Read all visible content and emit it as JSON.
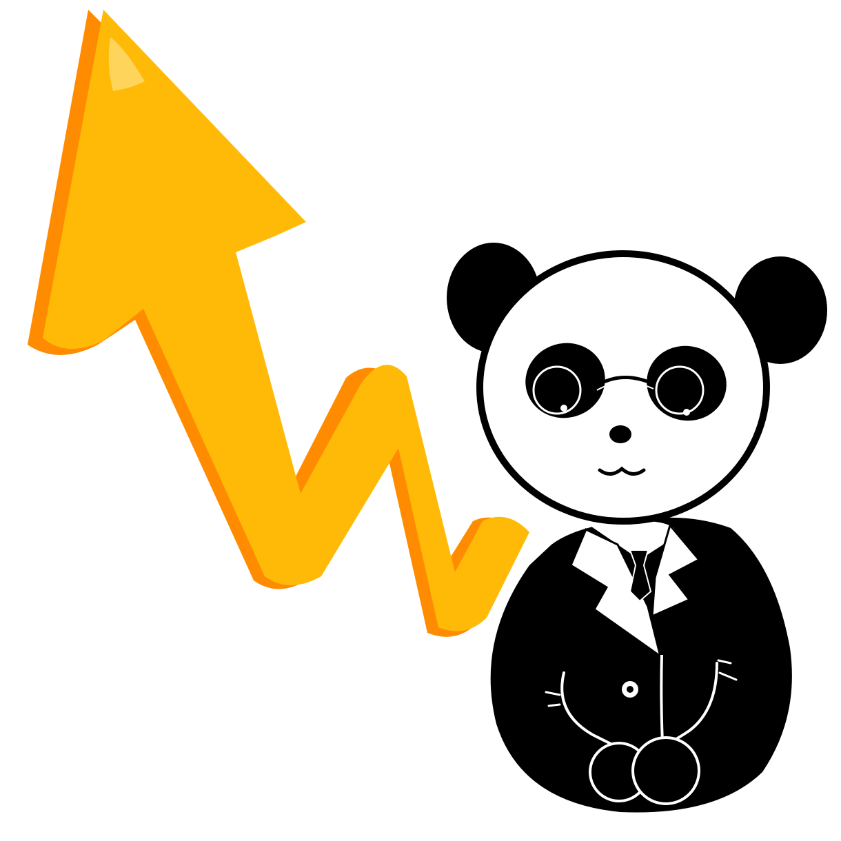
{
  "illustration": {
    "subjects": [
      "rising-arrow",
      "panda-in-suit"
    ],
    "colors": {
      "background": "#ffffff",
      "arrow_fill": "#FFBA08",
      "arrow_shadow": "#FF8C00",
      "arrow_highlight": "#FFD45A",
      "panda_black": "#000000",
      "panda_white": "#ffffff"
    }
  }
}
